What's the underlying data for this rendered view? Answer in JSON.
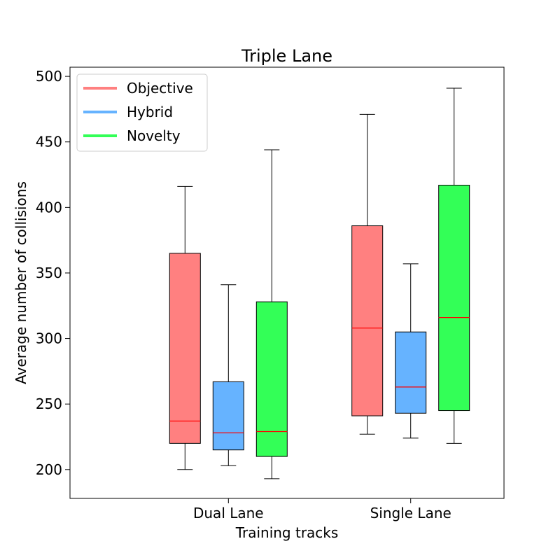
{
  "chart_data": {
    "type": "boxplot",
    "title": "Triple Lane",
    "xlabel": "Training tracks",
    "ylabel": "Average number of collisions",
    "categories": [
      "Dual Lane",
      "Single Lane"
    ],
    "ylim": [
      178,
      507
    ],
    "yticks": [
      200,
      250,
      300,
      350,
      400,
      450,
      500
    ],
    "grid": false,
    "legend_position": "top-left",
    "series": [
      {
        "name": "Objective",
        "color": "#ff8080",
        "boxes": [
          {
            "whisker_low": 200,
            "q1": 220,
            "median": 237,
            "q3": 365,
            "whisker_high": 416
          },
          {
            "whisker_low": 227,
            "q1": 241,
            "median": 308,
            "q3": 386,
            "whisker_high": 471
          }
        ]
      },
      {
        "name": "Hybrid",
        "color": "#66b3ff",
        "boxes": [
          {
            "whisker_low": 203,
            "q1": 215,
            "median": 228,
            "q3": 267,
            "whisker_high": 341
          },
          {
            "whisker_low": 224,
            "q1": 243,
            "median": 263,
            "q3": 305,
            "whisker_high": 357
          }
        ]
      },
      {
        "name": "Novelty",
        "color": "#33ff57",
        "boxes": [
          {
            "whisker_low": 193,
            "q1": 210,
            "median": 229,
            "q3": 328,
            "whisker_high": 444
          },
          {
            "whisker_low": 220,
            "q1": 245,
            "median": 316,
            "q3": 417,
            "whisker_high": 491
          }
        ]
      }
    ],
    "median_color": "#ff0000"
  }
}
